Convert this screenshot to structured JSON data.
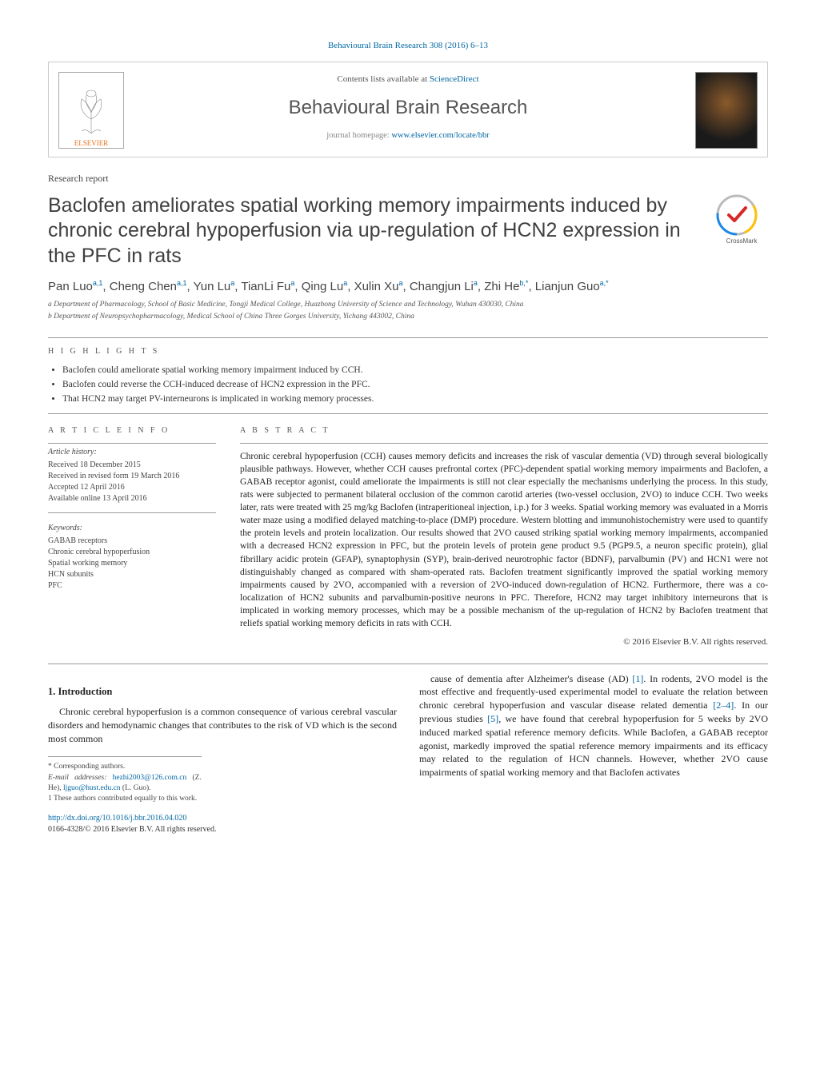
{
  "citation": "Behavioural Brain Research 308 (2016) 6–13",
  "contentsLine_prefix": "Contents lists available at ",
  "contentsLine_link": "ScienceDirect",
  "journalName": "Behavioural Brain Research",
  "homepage_prefix": "journal homepage: ",
  "homepage_link": "www.elsevier.com/locate/bbr",
  "elsevier_label": "ELSEVIER",
  "articleType": "Research report",
  "title": "Baclofen ameliorates spatial working memory impairments induced by chronic cerebral hypoperfusion via up-regulation of HCN2 expression in the PFC in rats",
  "crossmark_label": "CrossMark",
  "authors_html": "Pan Luo<sup>a,1</sup>, Cheng Chen<sup>a,1</sup>, Yun Lu<sup>a</sup>, TianLi Fu<sup>a</sup>, Qing Lu<sup>a</sup>, Xulin Xu<sup>a</sup>, Changjun Li<sup>a</sup>, Zhi He<sup>b,*</sup>, Lianjun Guo<sup>a,*</sup>",
  "affiliations": {
    "a": "a Department of Pharmacology, School of Basic Medicine, Tongji Medical College, Huazhong University of Science and Technology, Wuhan 430030, China",
    "b": "b Department of Neuropsychopharmacology, Medical School of China Three Gorges University, Yichang 443002, China"
  },
  "highlights_label": "H I G H L I G H T S",
  "highlights": [
    "Baclofen could ameliorate spatial working memory impairment induced by CCH.",
    "Baclofen could reverse the CCH-induced decrease of HCN2 expression in the PFC.",
    "That HCN2 may target PV-interneurons is implicated in working memory processes."
  ],
  "articleInfo_label": "A R T I C L E   I N F O",
  "history_label": "Article history:",
  "history": [
    "Received 18 December 2015",
    "Received in revised form 19 March 2016",
    "Accepted 12 April 2016",
    "Available online 13 April 2016"
  ],
  "keywords_label": "Keywords:",
  "keywords": [
    "GABAB receptors",
    "Chronic cerebral hypoperfusion",
    "Spatial working memory",
    "HCN subunits",
    "PFC"
  ],
  "abstract_label": "A B S T R A C T",
  "abstract": "Chronic cerebral hypoperfusion (CCH) causes memory deficits and increases the risk of vascular dementia (VD) through several biologically plausible pathways. However, whether CCH causes prefrontal cortex (PFC)-dependent spatial working memory impairments and Baclofen, a GABAB receptor agonist, could ameliorate the impairments is still not clear especially the mechanisms underlying the process. In this study, rats were subjected to permanent bilateral occlusion of the common carotid arteries (two-vessel occlusion, 2VO) to induce CCH. Two weeks later, rats were treated with 25 mg/kg Baclofen (intraperitioneal injection, i.p.) for 3 weeks. Spatial working memory was evaluated in a Morris water maze using a modified delayed matching-to-place (DMP) procedure. Western blotting and immunohistochemistry were used to quantify the protein levels and protein localization. Our results showed that 2VO caused striking spatial working memory impairments, accompanied with a decreased HCN2 expression in PFC, but the protein levels of protein gene product 9.5 (PGP9.5, a neuron specific protein), glial fibrillary acidic protein (GFAP), synaptophysin (SYP), brain-derived neurotrophic factor (BDNF), parvalbumin (PV) and HCN1 were not distinguishably changed as compared with sham-operated rats. Baclofen treatment significantly improved the spatial working memory impairments caused by 2VO, accompanied with a reversion of 2VO-induced down-regulation of HCN2. Furthermore, there was a co-localization of HCN2 subunits and parvalbumin-positive neurons in PFC. Therefore, HCN2 may target inhibitory interneurons that is implicated in working memory processes, which may be a possible mechanism of the up-regulation of HCN2 by Baclofen treatment that reliefs spatial working memory deficits in rats with CCH.",
  "copyright": "© 2016 Elsevier B.V. All rights reserved.",
  "intro_heading": "1. Introduction",
  "intro_para1": "Chronic cerebral hypoperfusion is a common consequence of various cerebral vascular disorders and hemodynamic changes that contributes to the risk of VD which is the second most common",
  "intro_para2_p1": "cause of dementia after Alzheimer's disease (AD) ",
  "ref1": "[1]",
  "intro_para2_p2": ". In rodents, 2VO model is the most effective and frequently-used experimental model to evaluate the relation between chronic cerebral hypoperfusion and vascular disease related dementia ",
  "ref2_4": "[2–4]",
  "intro_para2_p3": ". In our previous studies ",
  "ref5": "[5]",
  "intro_para2_p4": ", we have found that cerebral hypoperfusion for 5 weeks by 2VO induced marked spatial reference memory deficits. While Baclofen, a GABAB receptor agonist, markedly improved the spatial reference memory impairments and its efficacy may related to the regulation of HCN channels. However, whether 2VO cause impairments of spatial working memory and that Baclofen activates",
  "footer": {
    "corr": "* Corresponding authors.",
    "emails_label": "E-mail addresses: ",
    "email1": "hezhi2003@126.com.cn",
    "email1_name": " (Z. He), ",
    "email2": "ljguo@hust.edu.cn",
    "email2_name": " (L. Guo).",
    "equal": "1 These authors contributed equally to this work."
  },
  "doi": "http://dx.doi.org/10.1016/j.bbr.2016.04.020",
  "issn_line": "0166-4328/© 2016 Elsevier B.V. All rights reserved.",
  "colors": {
    "link": "#0066a1",
    "text": "#333333",
    "heading": "#3f3f3f",
    "elsevier_orange": "#e9711c"
  }
}
